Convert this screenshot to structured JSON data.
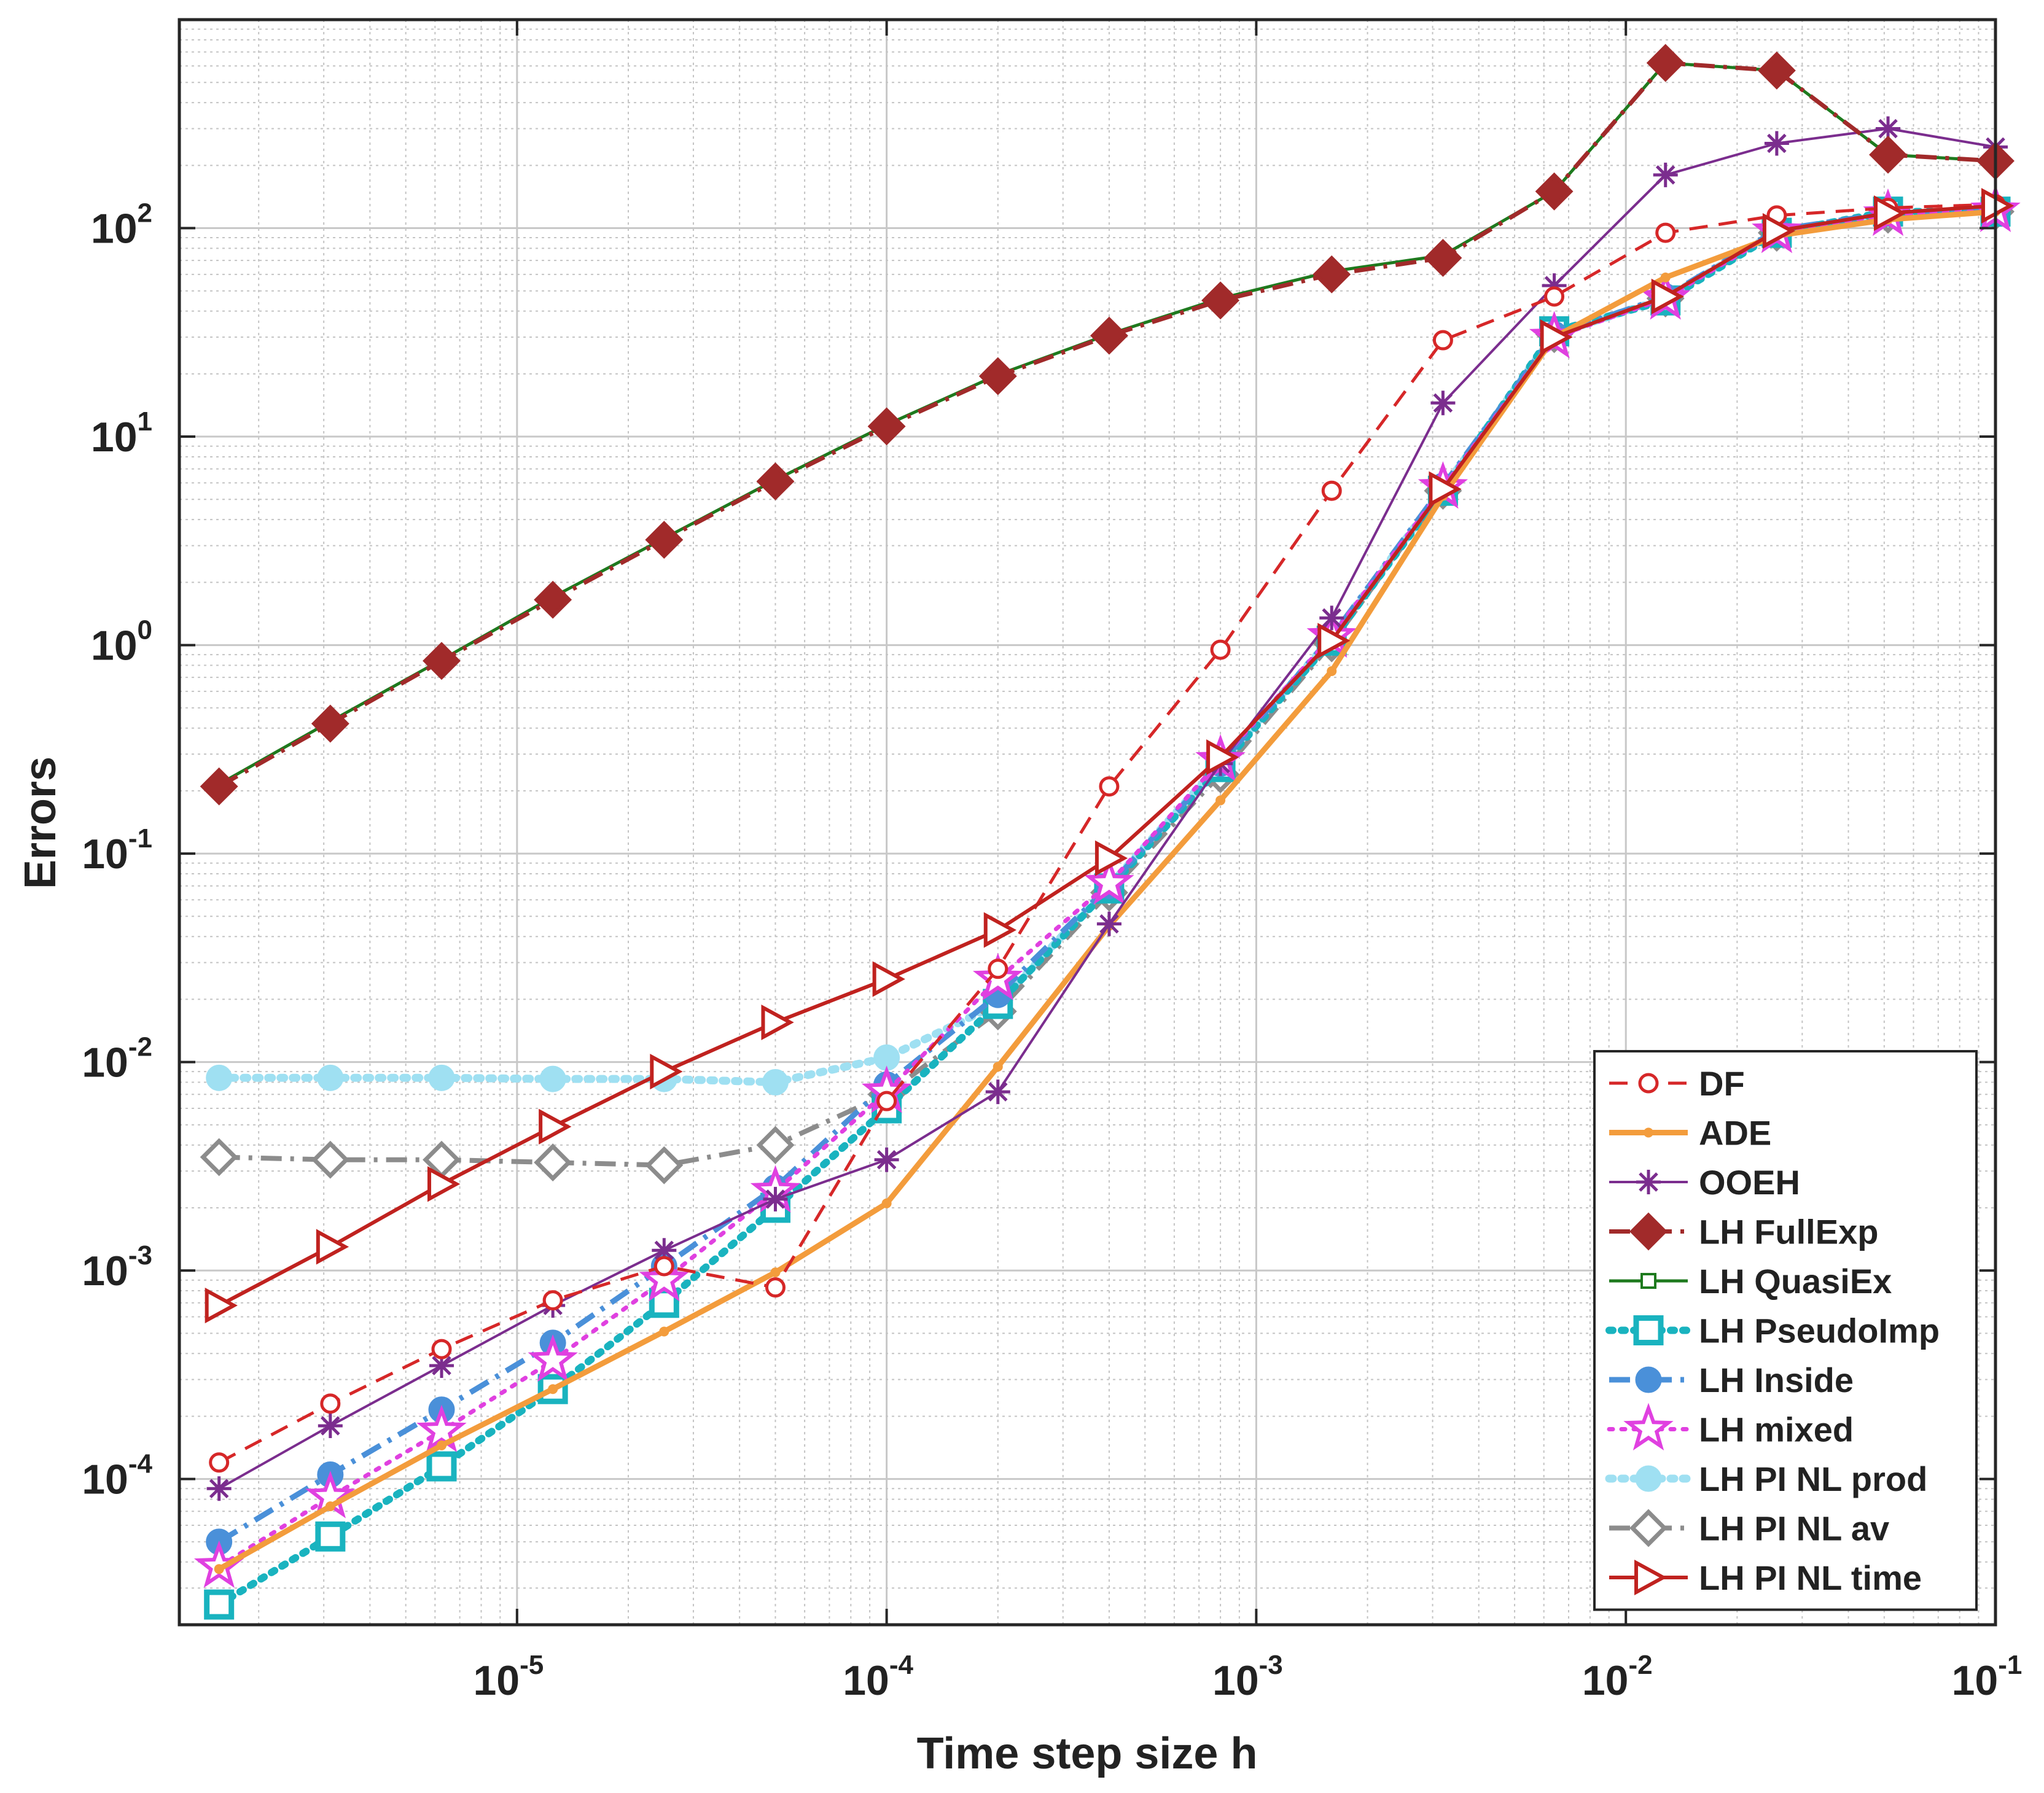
{
  "chart_data": {
    "type": "line",
    "title": "",
    "xlabel": "Time step size h",
    "ylabel": "Errors",
    "xscale": "log",
    "yscale": "log",
    "xlim": [
      1.22e-06,
      0.1
    ],
    "ylim": [
      2e-05,
      1000
    ],
    "grid": true,
    "minor_grid": true,
    "legend_position": "bottom-right",
    "x": [
      1.5625e-06,
      3.125e-06,
      6.25e-06,
      1.25e-05,
      2.5e-05,
      5e-05,
      0.0001,
      0.0002,
      0.0004,
      0.0008,
      0.0016,
      0.0032,
      0.0064,
      0.0128,
      0.0256,
      0.0512,
      0.1
    ],
    "x_ticks": [
      {
        "value": 1e-05,
        "base": "10",
        "exp": "-5"
      },
      {
        "value": 0.0001,
        "base": "10",
        "exp": "-4"
      },
      {
        "value": 0.001,
        "base": "10",
        "exp": "-3"
      },
      {
        "value": 0.01,
        "base": "10",
        "exp": "-2"
      },
      {
        "value": 0.1,
        "base": "10",
        "exp": "-1"
      }
    ],
    "y_ticks": [
      {
        "value": 0.0001,
        "base": "10",
        "exp": "-4"
      },
      {
        "value": 0.001,
        "base": "10",
        "exp": "-3"
      },
      {
        "value": 0.01,
        "base": "10",
        "exp": "-2"
      },
      {
        "value": 0.1,
        "base": "10",
        "exp": "-1"
      },
      {
        "value": 1,
        "base": "10",
        "exp": "0"
      },
      {
        "value": 10,
        "base": "10",
        "exp": "1"
      },
      {
        "value": 100,
        "base": "10",
        "exp": "2"
      }
    ],
    "series": [
      {
        "name": "DF",
        "color": "#d62728",
        "dash": "dashed",
        "marker": "circle",
        "values": [
          0.00012,
          0.00023,
          0.00042,
          0.00072,
          0.00105,
          0.00083,
          0.0065,
          0.028,
          0.21,
          0.95,
          5.5,
          29,
          47,
          95,
          115,
          125,
          130
        ]
      },
      {
        "name": "ADE",
        "color": "#f39c3c",
        "dash": "solid",
        "marker": "dot",
        "values": [
          3.7e-05,
          7.4e-05,
          0.000145,
          0.00027,
          0.00051,
          0.00098,
          0.0021,
          0.0095,
          0.045,
          0.18,
          0.75,
          5.2,
          30,
          58,
          92,
          110,
          120
        ]
      },
      {
        "name": "OOEH",
        "color": "#7b2d8e",
        "dash": "solid",
        "marker": "asterisk",
        "values": [
          9e-05,
          0.00018,
          0.00035,
          0.00068,
          0.00125,
          0.0022,
          0.0034,
          0.0072,
          0.046,
          0.27,
          1.35,
          14.5,
          53,
          180,
          255,
          300,
          245
        ]
      },
      {
        "name": "LH FullExp",
        "color": "#a12a2a",
        "dash": "dashdot",
        "marker": "diamond",
        "values": [
          0.21,
          0.42,
          0.84,
          1.65,
          3.2,
          6.1,
          11.2,
          19.5,
          30.5,
          45,
          60,
          72,
          150,
          620,
          570,
          225,
          210
        ]
      },
      {
        "name": "LH QuasiEx",
        "color": "#1e7a1e",
        "dash": "solid",
        "marker": "smallsquare",
        "values": [
          0.215,
          0.43,
          0.85,
          1.7,
          3.25,
          6.2,
          11.4,
          19.8,
          31,
          46,
          62,
          74,
          150,
          620,
          570,
          225,
          210
        ]
      },
      {
        "name": "LH PseudoImp",
        "color": "#19b3bf",
        "dash": "dotted",
        "marker": "square",
        "values": [
          2.5e-05,
          5.3e-05,
          0.000115,
          0.00027,
          0.0007,
          0.002,
          0.006,
          0.019,
          0.068,
          0.26,
          1.05,
          5.5,
          32,
          45,
          95,
          120,
          120
        ]
      },
      {
        "name": "LH Inside",
        "color": "#4a90d9",
        "dash": "dashdot",
        "marker": "filledcircle",
        "values": [
          5e-05,
          0.000105,
          0.000215,
          0.00045,
          0.00105,
          0.0025,
          0.0078,
          0.021,
          0.07,
          0.27,
          1.1,
          5.8,
          31,
          47,
          98,
          118,
          122
        ]
      },
      {
        "name": "LH mixed",
        "color": "#e040e0",
        "dash": "dotted",
        "marker": "star",
        "values": [
          3.8e-05,
          8.2e-05,
          0.00017,
          0.00037,
          0.0009,
          0.0024,
          0.0072,
          0.025,
          0.072,
          0.28,
          1.1,
          5.7,
          30,
          46,
          96,
          116,
          121
        ]
      },
      {
        "name": "LH PI NL prod",
        "color": "#9fe0f2",
        "dash": "dotted",
        "marker": "filledcircle",
        "values": [
          0.0084,
          0.0084,
          0.0084,
          0.0083,
          0.0083,
          0.008,
          0.0105,
          0.019,
          0.07,
          0.27,
          1.08,
          5.6,
          31,
          46,
          96,
          117,
          121
        ]
      },
      {
        "name": "LH PI NL av",
        "color": "#8c8c8c",
        "dash": "dashdot",
        "marker": "diamond",
        "values": [
          0.0035,
          0.0034,
          0.0034,
          0.0033,
          0.0032,
          0.004,
          0.007,
          0.0175,
          0.065,
          0.24,
          1.02,
          5.5,
          31,
          46,
          95,
          116,
          120
        ]
      },
      {
        "name": "LH PI NL time",
        "color": "#c0221f",
        "dash": "solid",
        "marker": "triangleright",
        "values": [
          0.00068,
          0.0013,
          0.0026,
          0.0049,
          0.009,
          0.0155,
          0.025,
          0.043,
          0.095,
          0.29,
          1.05,
          5.6,
          30,
          47,
          97,
          118,
          128
        ]
      }
    ]
  }
}
